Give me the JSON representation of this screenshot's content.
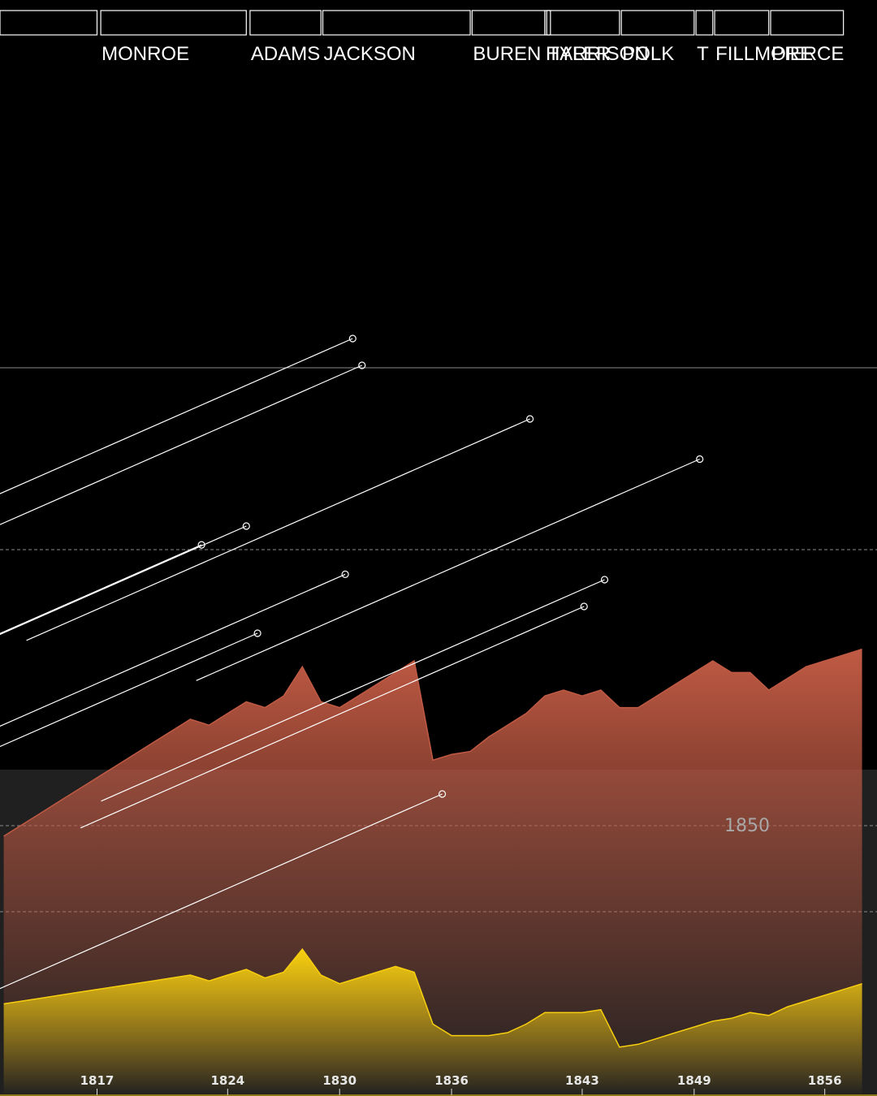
{
  "chart_data": {
    "type": "area",
    "title": "",
    "xlabel": "",
    "ylabel": "",
    "xlim": [
      1811.8,
      1858.8
    ],
    "x_ticks": [
      "1817",
      "1824",
      "1830",
      "1836",
      "1843",
      "1849",
      "1856"
    ],
    "reference_line": {
      "label": "1850"
    },
    "colors": {
      "background": "#000000",
      "lower_panel": "#202020",
      "series_red": "#c05a44",
      "series_yellow": "#f7cf0e",
      "lines": "#ffffff"
    },
    "presidencies": [
      {
        "name": "",
        "start": 1811.8,
        "end": 1817.0
      },
      {
        "name": "MONROE",
        "start": 1817.2,
        "end": 1825.0
      },
      {
        "name": "ADAMS",
        "start": 1825.2,
        "end": 1829.0
      },
      {
        "name": "JACKSON",
        "start": 1829.1,
        "end": 1837.0
      },
      {
        "name": "BUREN",
        "start": 1837.1,
        "end": 1841.0
      },
      {
        "name": "HARRISON",
        "start": 1841.0,
        "end": 1841.3
      },
      {
        "name": "TYLER",
        "start": 1841.1,
        "end": 1845.0
      },
      {
        "name": "POLK",
        "start": 1845.1,
        "end": 1849.0
      },
      {
        "name": "T",
        "start": 1849.1,
        "end": 1850.0
      },
      {
        "name": "FILLMORE",
        "start": 1850.1,
        "end": 1853.0
      },
      {
        "name": "PIERCE",
        "start": 1853.1,
        "end": 1857.0
      }
    ],
    "series": [
      {
        "x": [
          1812,
          1813,
          1814,
          1815,
          1816,
          1817,
          1818,
          1819,
          1820,
          1821,
          1822,
          1823,
          1824,
          1825,
          1826,
          1827,
          1828,
          1829,
          1830,
          1831,
          1832,
          1833,
          1834,
          1835,
          1836,
          1837,
          1838,
          1839,
          1840,
          1841,
          1842,
          1843,
          1844,
          1845,
          1846,
          1847,
          1848,
          1849,
          1850,
          1851,
          1852,
          1853,
          1854,
          1855,
          1856,
          1857,
          1858
        ],
        "values": [
          9,
          11,
          13,
          15,
          17,
          19,
          21,
          23,
          25,
          27,
          29,
          28,
          30,
          32,
          31,
          33,
          38,
          32,
          31,
          33,
          35,
          37,
          39,
          22,
          23,
          23.5,
          26,
          28,
          30,
          33,
          34,
          33,
          34,
          31,
          31,
          33,
          35,
          37,
          39,
          37,
          37,
          34,
          36,
          38,
          39,
          40,
          41
        ]
      },
      {
        "x": [
          1812,
          1813,
          1814,
          1815,
          1816,
          1817,
          1818,
          1819,
          1820,
          1821,
          1822,
          1823,
          1824,
          1825,
          1826,
          1827,
          1828,
          1829,
          1830,
          1831,
          1832,
          1833,
          1834,
          1835,
          1836,
          1837,
          1838,
          1839,
          1840,
          1841,
          1842,
          1843,
          1844,
          1845,
          1846,
          1847,
          1848,
          1849,
          1850,
          1851,
          1852,
          1853,
          1854,
          1855,
          1856,
          1857,
          1858
        ],
        "values": [
          8.5,
          9,
          9.5,
          10,
          10.5,
          11,
          11.5,
          12,
          12.5,
          13,
          13.5,
          12.5,
          13.5,
          14.5,
          13,
          14,
          18,
          13.5,
          12,
          13,
          14,
          15,
          14,
          5,
          3,
          3,
          3,
          3.5,
          5,
          7,
          7,
          7,
          7.5,
          1,
          1.5,
          2.5,
          3.5,
          4.5,
          5.5,
          6,
          7,
          6.5,
          8,
          9,
          10,
          11,
          12
        ]
      }
    ],
    "markers": [
      {
        "x": 1830.7,
        "y": 1817.0
      },
      {
        "x": 1831.2,
        "y": 1816.0
      },
      {
        "x": 1840.2,
        "y": 1814.0
      },
      {
        "x": 1849.3,
        "y": 1812.5
      },
      {
        "x": 1825.0,
        "y": 1810.0
      },
      {
        "x": 1822.6,
        "y": 1809.3
      },
      {
        "x": 1830.3,
        "y": 1808.2
      },
      {
        "x": 1844.2,
        "y": 1808.0
      },
      {
        "x": 1843.1,
        "y": 1807.0
      },
      {
        "x": 1825.6,
        "y": 1806.0
      },
      {
        "x": 1835.5,
        "y": 1800.0
      }
    ]
  }
}
